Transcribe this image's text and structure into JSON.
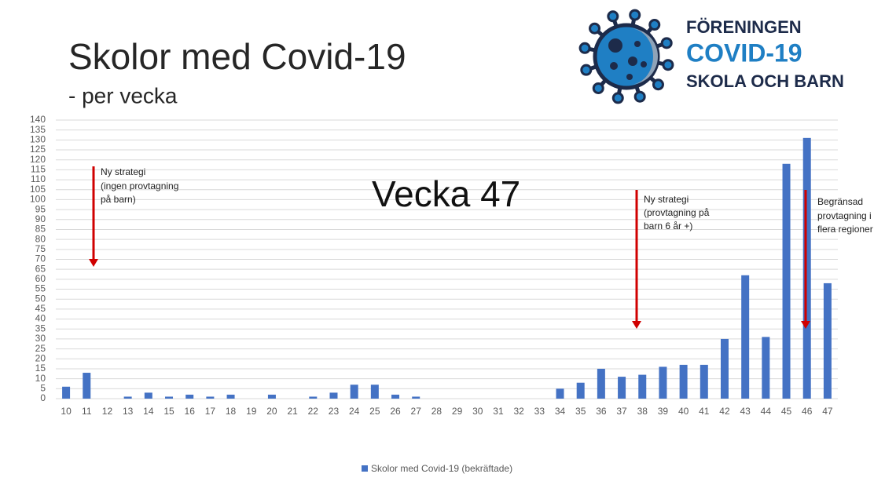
{
  "chart_data": {
    "type": "bar",
    "title": "Skolor med Covid-19",
    "subtitle": "- per vecka",
    "highlight": "Vecka 47",
    "categories": [
      "10",
      "11",
      "12",
      "13",
      "14",
      "15",
      "16",
      "17",
      "18",
      "19",
      "20",
      "21",
      "22",
      "23",
      "24",
      "25",
      "26",
      "27",
      "28",
      "29",
      "30",
      "31",
      "32",
      "33",
      "34",
      "35",
      "36",
      "37",
      "38",
      "39",
      "40",
      "41",
      "42",
      "43",
      "44",
      "45",
      "46",
      "47"
    ],
    "series": [
      {
        "name": "Skolor med Covid-19 (bekräftade)",
        "color": "#4472c4",
        "values": [
          6,
          13,
          0,
          1,
          3,
          1,
          2,
          1,
          2,
          0,
          2,
          0,
          1,
          3,
          7,
          7,
          2,
          1,
          0,
          0,
          0,
          0,
          0,
          0,
          5,
          8,
          15,
          11,
          12,
          16,
          17,
          17,
          30,
          62,
          31,
          118,
          131,
          58
        ]
      }
    ],
    "ylim": [
      0,
      140
    ],
    "yticks": [
      0,
      5,
      10,
      15,
      20,
      25,
      30,
      35,
      40,
      45,
      50,
      55,
      60,
      65,
      70,
      75,
      80,
      85,
      90,
      95,
      100,
      105,
      110,
      115,
      120,
      125,
      130,
      135,
      140
    ],
    "grid": true,
    "legend": "bottom",
    "annotations": [
      [
        "Ny strategi",
        "(ingen provtagning",
        "på barn)"
      ],
      [
        "Ny strategi",
        "(provtagning på",
        "barn 6 år +)"
      ],
      [
        "Begränsad",
        "provtagning i",
        "flera regioner"
      ]
    ]
  },
  "logo": {
    "line1": "FÖRENINGEN",
    "line2": "COVID-19",
    "line3": "SKOLA OCH BARN"
  }
}
